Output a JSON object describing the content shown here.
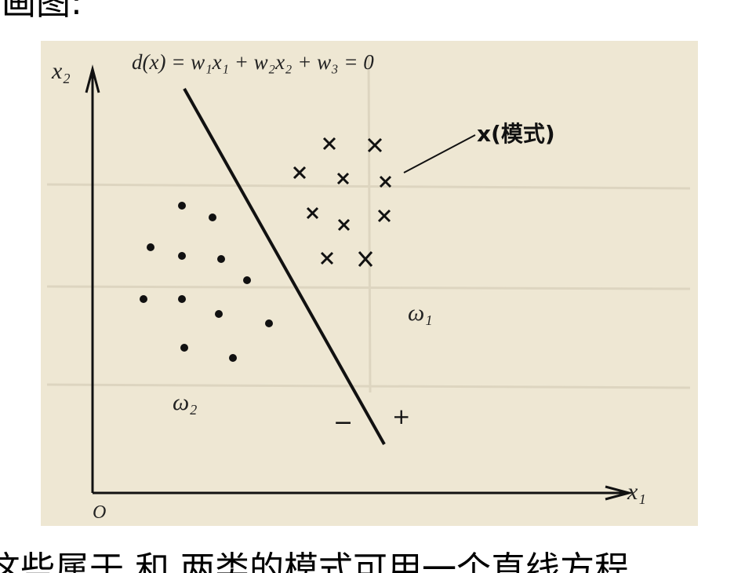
{
  "header": {
    "text": "画图:"
  },
  "diagram": {
    "y_axis_label": "x₂",
    "x_axis_label": "x₁",
    "origin_label": "O",
    "equation": "d(x) = w₁x₁ + w₂x₂ + w₃ = 0",
    "pattern_label": "x(模式)",
    "class_1_label": "ω₁",
    "class_2_label": "ω₂",
    "negative_side": "−",
    "positive_side": "+"
  },
  "footer": {
    "text": "这些属于      和      两类的模式可用一个直线方程"
  }
}
